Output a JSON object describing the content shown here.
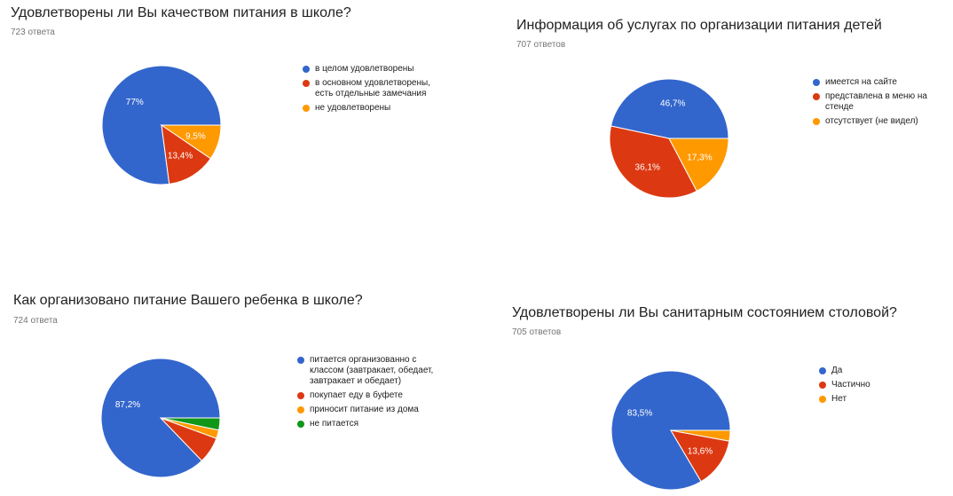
{
  "colors": [
    "#3366cc",
    "#dc3912",
    "#ff9900",
    "#109618"
  ],
  "chart_data": [
    {
      "type": "pie",
      "title": "Удовлетворены ли Вы качеством питания в школе?",
      "subtitle": "723 ответа",
      "legend_position": "right",
      "slices": [
        {
          "label": "в целом удовлетворены",
          "value": 77,
          "display": "77%"
        },
        {
          "label": "в основном удовлетворены, есть отдельные замечания",
          "value": 13.4,
          "display": "13,4%"
        },
        {
          "label": "не удовлетворены",
          "value": 9.5,
          "display": "9,5%"
        }
      ]
    },
    {
      "type": "pie",
      "title": "Информация об услугах по организации питания детей",
      "subtitle": "707 ответов",
      "legend_position": "right",
      "slices": [
        {
          "label": "имеется на сайте",
          "value": 46.7,
          "display": "46,7%"
        },
        {
          "label": "представлена в меню на стенде",
          "value": 36.1,
          "display": "36,1%"
        },
        {
          "label": "отсутствует (не видел)",
          "value": 17.3,
          "display": "17,3%"
        }
      ]
    },
    {
      "type": "pie",
      "title": "Как организовано питание Вашего ребенка в школе?",
      "subtitle": "724 ответа",
      "legend_position": "right",
      "slices": [
        {
          "label": "питается организованно с классом (завтракает, обедает, завтракает и обедает)",
          "value": 87.2,
          "display": "87,2%"
        },
        {
          "label": "покупает еду в буфете",
          "value": 7.2,
          "display": ""
        },
        {
          "label": "приносит питание из дома",
          "value": 2.3,
          "display": ""
        },
        {
          "label": "не питается",
          "value": 3.3,
          "display": ""
        }
      ]
    },
    {
      "type": "pie",
      "title": "Удовлетворены ли Вы санитарным состоянием столовой?",
      "subtitle": "705 ответов",
      "legend_position": "right",
      "slices": [
        {
          "label": "Да",
          "value": 83.5,
          "display": "83,5%"
        },
        {
          "label": "Частично",
          "value": 13.6,
          "display": "13,6%"
        },
        {
          "label": "Нет",
          "value": 2.9,
          "display": ""
        }
      ]
    }
  ]
}
